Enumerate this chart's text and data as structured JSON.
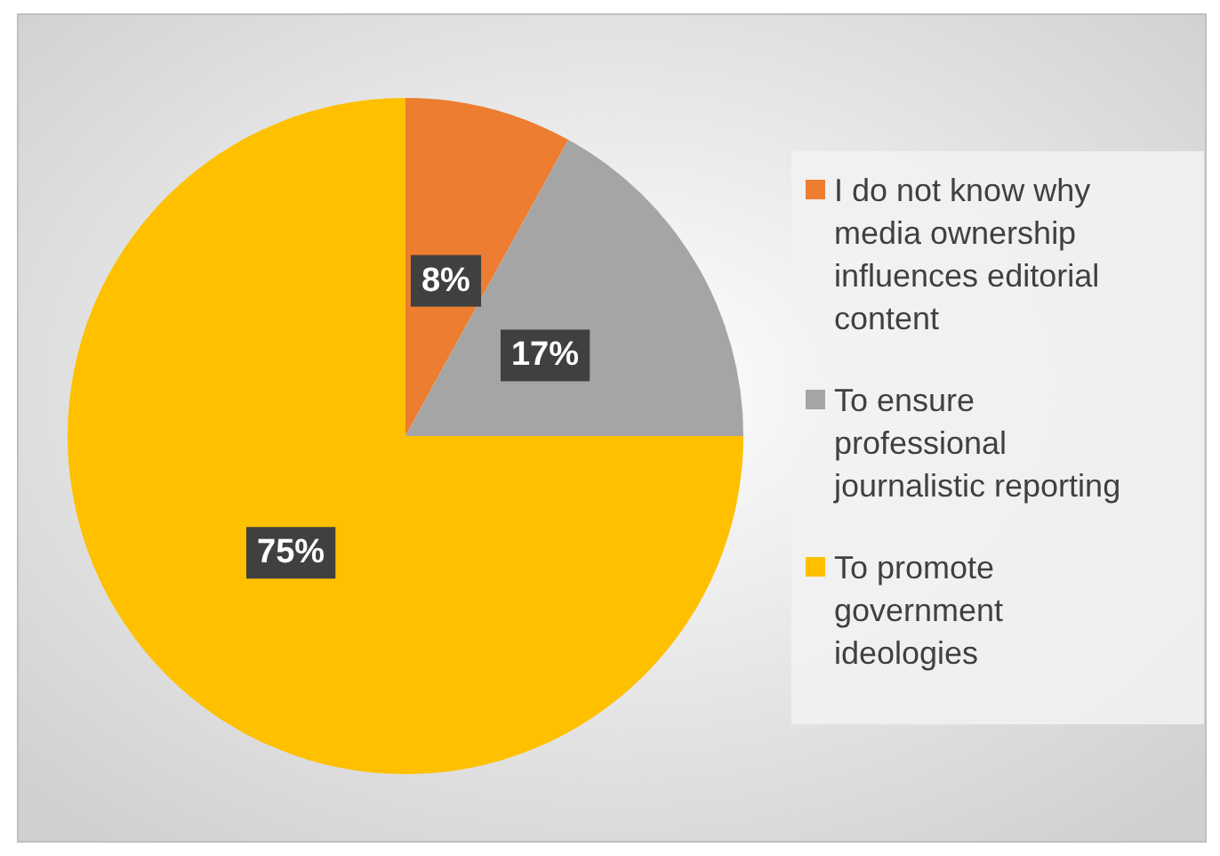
{
  "chart_data": {
    "type": "pie",
    "categories": [
      "I do not know why media ownership influences editorial content",
      "To ensure professional journalistic reporting",
      "To promote government ideologies"
    ],
    "values": [
      8,
      17,
      75
    ],
    "colors": [
      "#ed7d31",
      "#a5a5a5",
      "#ffc000"
    ],
    "value_labels": [
      "8%",
      "17%",
      "75%"
    ],
    "legend": "right"
  }
}
